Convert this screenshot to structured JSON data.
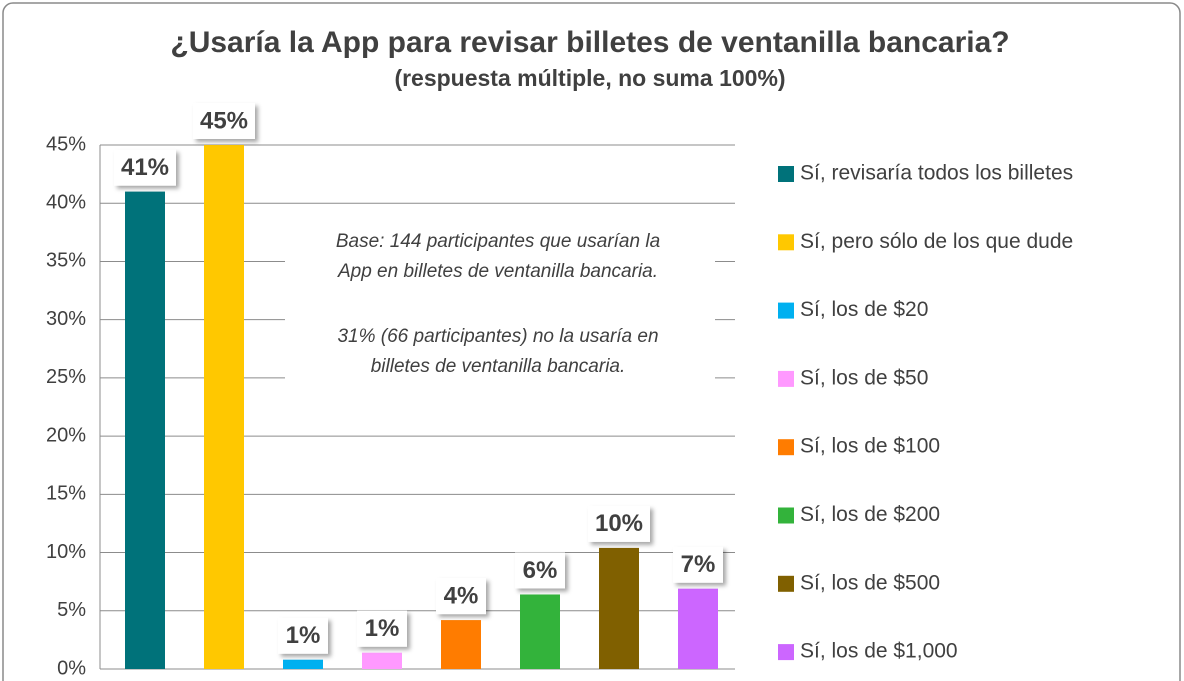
{
  "chart_data": {
    "type": "bar",
    "title": "¿Usaría la App para revisar billetes de ventanilla bancaria?",
    "subtitle": "(respuesta múltiple, no suma 100%)",
    "annotations": [
      [
        "Base: 144 participantes que usarían la",
        "App en billetes de ventanilla bancaria."
      ],
      [
        "31% (66 participantes) no la usaría en",
        "billetes de ventanilla bancaria."
      ]
    ],
    "series": [
      {
        "name": "Sí, revisaría todos los billetes",
        "color": "#00727a",
        "values": [
          41
        ],
        "value_labels": [
          "41%"
        ]
      },
      {
        "name": "Sí, pero sólo de los que dude",
        "color": "#ffc800",
        "values": [
          45
        ],
        "value_labels": [
          "45%"
        ]
      },
      {
        "name": "Sí, los de $20",
        "color": "#00b0f0",
        "values": [
          0.8
        ],
        "value_labels": [
          "1%"
        ]
      },
      {
        "name": "Sí, los de $50",
        "color": "#ff99ff",
        "values": [
          1.4
        ],
        "value_labels": [
          "1%"
        ]
      },
      {
        "name": "Sí, los de $100",
        "color": "#ff7c00",
        "values": [
          4.2
        ],
        "value_labels": [
          "4%"
        ]
      },
      {
        "name": "Sí, los de $200",
        "color": "#33b33b",
        "values": [
          6.4
        ],
        "value_labels": [
          "6%"
        ]
      },
      {
        "name": "Sí, los de $500",
        "color": "#806000",
        "values": [
          10.4
        ],
        "value_labels": [
          "10%"
        ]
      },
      {
        "name": "Sí, los de $1,000",
        "color": "#cc66ff",
        "values": [
          6.9
        ],
        "value_labels": [
          "7%"
        ]
      }
    ],
    "ylim": [
      0,
      45
    ],
    "yticks": [
      {
        "value": 0,
        "label": "0%"
      },
      {
        "value": 5,
        "label": "5%"
      },
      {
        "value": 10,
        "label": "10%"
      },
      {
        "value": 15,
        "label": "15%"
      },
      {
        "value": 20,
        "label": "20%"
      },
      {
        "value": 25,
        "label": "25%"
      },
      {
        "value": 30,
        "label": "30%"
      },
      {
        "value": 35,
        "label": "35%"
      },
      {
        "value": 40,
        "label": "40%"
      },
      {
        "value": 45,
        "label": "45%"
      }
    ],
    "grid": true,
    "legend": "right"
  }
}
